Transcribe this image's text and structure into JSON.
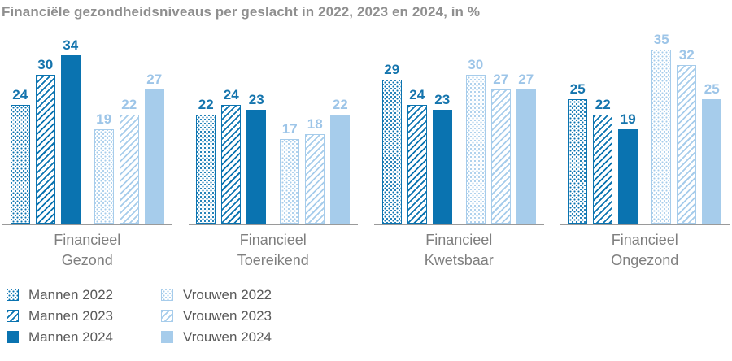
{
  "title": "Financiële gezondheidsniveaus per geslacht in 2022, 2023 en 2024, in %",
  "colors": {
    "dark": "#0a73b0",
    "light": "#a6cceb",
    "label_dark": "#1474ad",
    "label_light": "#9dc5e8",
    "axis": "#9a9a9a",
    "title_text": "#8f8f8f",
    "category_text": "#7f7f7f",
    "legend_text": "#595959"
  },
  "chart_data": {
    "type": "bar",
    "unit": "%",
    "ylim": [
      0,
      35
    ],
    "grid": false,
    "value_labels": true,
    "legend_position": "bottom-left",
    "categories": [
      [
        "Financieel",
        "Gezond"
      ],
      [
        "Financieel",
        "Toereikend"
      ],
      [
        "Financieel",
        "Kwetsbaar"
      ],
      [
        "Financieel",
        "Ongezond"
      ]
    ],
    "series": [
      {
        "name": "Mannen 2022",
        "tone": "dark",
        "pattern": "dots",
        "values": [
          24,
          22,
          29,
          25
        ]
      },
      {
        "name": "Mannen 2023",
        "tone": "dark",
        "pattern": "hatch",
        "values": [
          30,
          24,
          24,
          22
        ]
      },
      {
        "name": "Mannen 2024",
        "tone": "dark",
        "pattern": "solid",
        "values": [
          34,
          23,
          23,
          19
        ]
      },
      {
        "name": "Vrouwen 2022",
        "tone": "light",
        "pattern": "dots",
        "values": [
          19,
          17,
          30,
          35
        ]
      },
      {
        "name": "Vrouwen 2023",
        "tone": "light",
        "pattern": "hatch",
        "values": [
          22,
          18,
          27,
          32
        ]
      },
      {
        "name": "Vrouwen 2024",
        "tone": "light",
        "pattern": "solid",
        "values": [
          27,
          22,
          27,
          25
        ]
      }
    ]
  }
}
